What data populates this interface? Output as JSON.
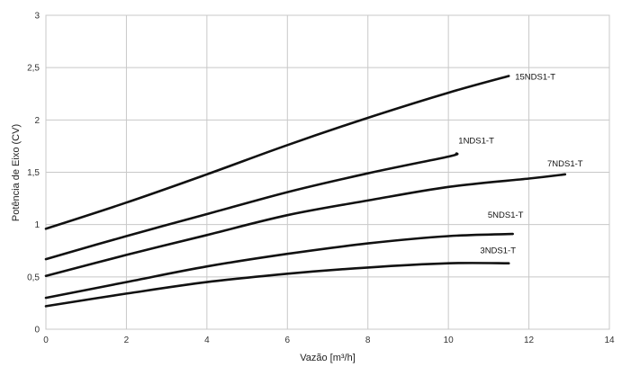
{
  "chart_data": {
    "type": "line",
    "title": "",
    "xlabel": "Vazão [m³/h]",
    "ylabel": "Potência de Eixo (CV)",
    "xlim": [
      0,
      14
    ],
    "ylim": [
      0,
      3
    ],
    "x_ticks": [
      "0",
      "2",
      "4",
      "6",
      "8",
      "10",
      "12",
      "14"
    ],
    "y_ticks": [
      "0",
      "0,5",
      "1",
      "1,5",
      "2",
      "2,5",
      "3"
    ],
    "grid": true,
    "legend": "none",
    "series": [
      {
        "name": "15NDS1-T",
        "points": [
          [
            0,
            0.96
          ],
          [
            2,
            1.21
          ],
          [
            4,
            1.48
          ],
          [
            6,
            1.76
          ],
          [
            8,
            2.02
          ],
          [
            10,
            2.26
          ],
          [
            11.5,
            2.42
          ]
        ]
      },
      {
        "name": "1NDS1-T",
        "points": [
          [
            0,
            0.67
          ],
          [
            2,
            0.89
          ],
          [
            4,
            1.1
          ],
          [
            6,
            1.31
          ],
          [
            8,
            1.49
          ],
          [
            10,
            1.65
          ],
          [
            10.2,
            1.68
          ]
        ]
      },
      {
        "name": "7NDS1-T",
        "points": [
          [
            0,
            0.51
          ],
          [
            2,
            0.71
          ],
          [
            4,
            0.9
          ],
          [
            6,
            1.09
          ],
          [
            8,
            1.23
          ],
          [
            10,
            1.36
          ],
          [
            12,
            1.44
          ],
          [
            12.9,
            1.48
          ]
        ]
      },
      {
        "name": "5NDS1-T",
        "points": [
          [
            0,
            0.3
          ],
          [
            2,
            0.45
          ],
          [
            4,
            0.6
          ],
          [
            6,
            0.72
          ],
          [
            8,
            0.82
          ],
          [
            10,
            0.89
          ],
          [
            11.6,
            0.91
          ]
        ]
      },
      {
        "name": "3NDS1-T",
        "points": [
          [
            0,
            0.22
          ],
          [
            2,
            0.34
          ],
          [
            4,
            0.45
          ],
          [
            6,
            0.53
          ],
          [
            8,
            0.59
          ],
          [
            10,
            0.63
          ],
          [
            11.5,
            0.63
          ]
        ]
      }
    ]
  }
}
